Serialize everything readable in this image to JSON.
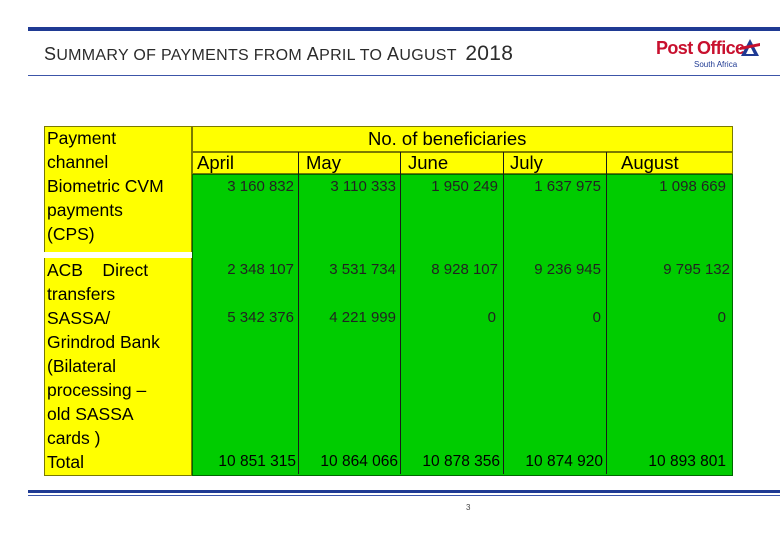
{
  "slide": {
    "title_parts": [
      {
        "text": "S",
        "big": true
      },
      {
        "text": "UMMARY OF PAYMENTS FROM ",
        "big": false
      },
      {
        "text": "A",
        "big": true
      },
      {
        "text": "PRIL TO ",
        "big": false
      },
      {
        "text": "A",
        "big": true
      },
      {
        "text": "UGUST",
        "big": false
      }
    ],
    "title_year": "2018",
    "page_number": "3",
    "logo": {
      "main_text": "Post Office",
      "sub_text": "South Africa"
    }
  },
  "table": {
    "group_header": "No. of beneficiaries",
    "row_header_title": [
      "Payment",
      "channel"
    ],
    "months": [
      "April",
      "May",
      "June",
      "July",
      "August"
    ],
    "rows": [
      {
        "label_lines": [
          "Biometric CVM",
          "payments",
          "(CPS)"
        ],
        "values": [
          "3 160 832",
          "3 110 333",
          "1 950 249",
          "1 637 975",
          "1 098 669"
        ]
      },
      {
        "label_lines": [
          "ACB    Direct",
          "transfers"
        ],
        "values": [
          "2 348 107",
          "3 531 734",
          "8 928 107",
          "9 236 945",
          "9 795 132"
        ]
      },
      {
        "label_lines": [
          "SASSA/",
          "Grindrod Bank",
          "(Bilateral",
          "processing –",
          "old SASSA",
          "cards )"
        ],
        "values": [
          "5 342 376",
          "4 221 999",
          "0",
          "0",
          "0"
        ]
      }
    ],
    "total": {
      "label": "Total",
      "values": [
        "10 851 315",
        "10 864 066",
        "10 878 356",
        "10 874 920",
        "10 893 801"
      ]
    }
  },
  "colors": {
    "header_fill": "#ffff00",
    "body_fill": "#00cc00",
    "rule": "#1f3a93",
    "logo_red": "#c8102e"
  }
}
